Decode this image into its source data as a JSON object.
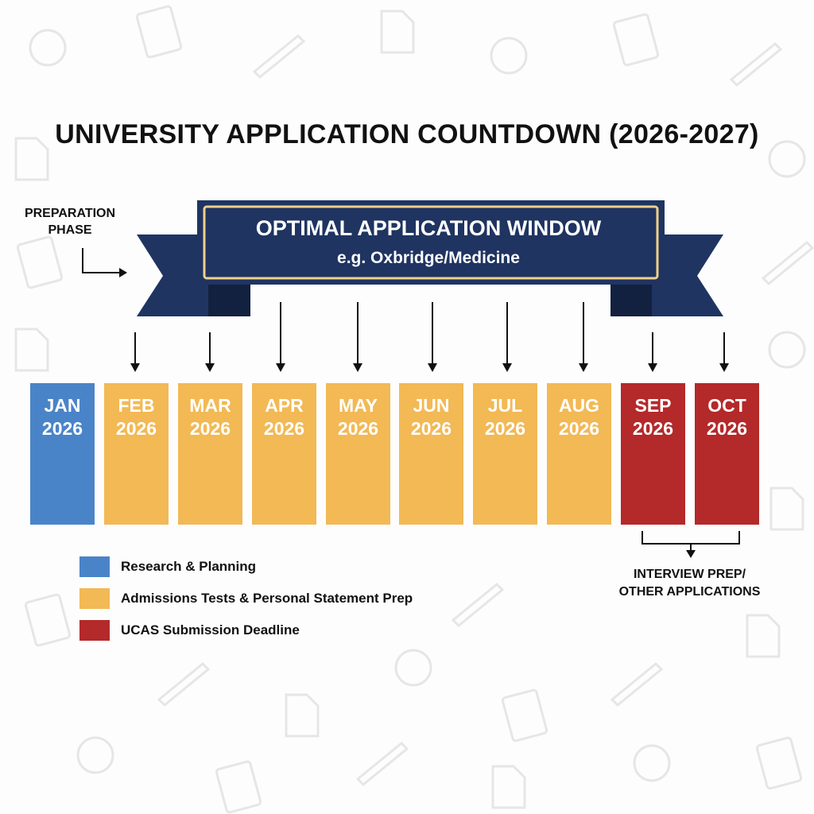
{
  "title": "UNIVERSITY APPLICATION COUNTDOWN (2026-2027)",
  "preparation_label": [
    "PREPARATION",
    "PHASE"
  ],
  "banner": {
    "title": "OPTIMAL APPLICATION WINDOW",
    "subtitle": "e.g. Oxbridge/Medicine",
    "color": "#1f3461",
    "border_color": "#f0d089"
  },
  "months": [
    {
      "month": "JAN",
      "year": "2026",
      "category": "research"
    },
    {
      "month": "FEB",
      "year": "2026",
      "category": "tests"
    },
    {
      "month": "MAR",
      "year": "2026",
      "category": "tests"
    },
    {
      "month": "APR",
      "year": "2026",
      "category": "tests"
    },
    {
      "month": "MAY",
      "year": "2026",
      "category": "tests"
    },
    {
      "month": "JUN",
      "year": "2026",
      "category": "tests"
    },
    {
      "month": "JUL",
      "year": "2026",
      "category": "tests"
    },
    {
      "month": "AUG",
      "year": "2026",
      "category": "tests"
    },
    {
      "month": "SEP",
      "year": "2026",
      "category": "deadline"
    },
    {
      "month": "OCT",
      "year": "2026",
      "category": "deadline"
    }
  ],
  "legend": [
    {
      "key": "research",
      "label": "Research & Planning",
      "color": "#4a84c8"
    },
    {
      "key": "tests",
      "label": "Admissions Tests & Personal Statement Prep",
      "color": "#f2b955"
    },
    {
      "key": "deadline",
      "label": "UCAS Submission Deadline",
      "color": "#b4292a"
    }
  ],
  "interview_label": [
    "INTERVIEW PREP/",
    "OTHER APPLICATIONS"
  ]
}
